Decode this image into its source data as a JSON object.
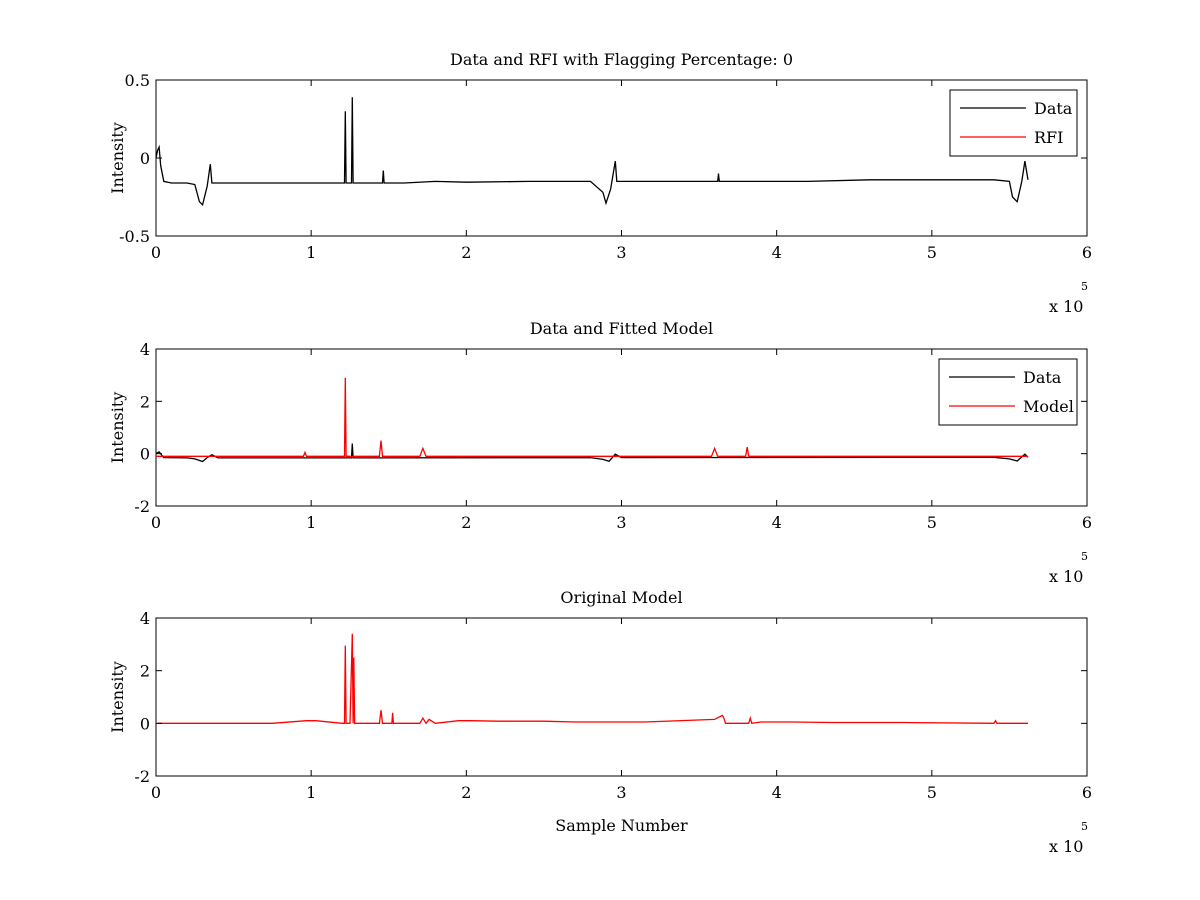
{
  "chart_data": [
    {
      "type": "line",
      "title": "Data and RFI with Flagging Percentage: 0",
      "xlabel": "",
      "ylabel": "Intensity",
      "xlim": [
        0,
        6
      ],
      "ylim": [
        -0.5,
        0.5
      ],
      "xticks": [
        "0",
        "1",
        "2",
        "3",
        "4",
        "5",
        "6"
      ],
      "yticks": [
        "-0.5",
        "0",
        "0.5"
      ],
      "x_multiplier": "x 10",
      "x_exponent": "5",
      "legend": "top-right",
      "series": [
        {
          "name": "Data",
          "color": "#000000",
          "x": [
            0,
            0.01,
            0.02,
            0.03,
            0.05,
            0.1,
            0.2,
            0.25,
            0.28,
            0.3,
            0.33,
            0.35,
            0.36,
            0.4,
            0.6,
            0.8,
            1.0,
            1.2,
            1.215,
            1.22,
            1.225,
            1.25,
            1.26,
            1.265,
            1.27,
            1.3,
            1.46,
            1.465,
            1.47,
            1.6,
            1.8,
            2.0,
            2.4,
            2.8,
            2.88,
            2.9,
            2.93,
            2.96,
            2.97,
            3.0,
            3.2,
            3.62,
            3.625,
            3.63,
            3.8,
            4.2,
            4.6,
            5.0,
            5.4,
            5.5,
            5.52,
            5.55,
            5.58,
            5.6,
            5.62
          ],
          "y": [
            0.0,
            0.05,
            0.07,
            -0.05,
            -0.15,
            -0.16,
            -0.16,
            -0.17,
            -0.28,
            -0.3,
            -0.18,
            -0.04,
            -0.16,
            -0.16,
            -0.16,
            -0.16,
            -0.16,
            -0.16,
            -0.16,
            0.3,
            -0.16,
            -0.16,
            -0.16,
            0.39,
            -0.16,
            -0.16,
            -0.16,
            -0.08,
            -0.16,
            -0.16,
            -0.15,
            -0.155,
            -0.15,
            -0.15,
            -0.22,
            -0.29,
            -0.2,
            -0.02,
            -0.15,
            -0.15,
            -0.15,
            -0.15,
            -0.1,
            -0.15,
            -0.15,
            -0.15,
            -0.14,
            -0.14,
            -0.14,
            -0.15,
            -0.25,
            -0.28,
            -0.15,
            -0.02,
            -0.14
          ]
        },
        {
          "name": "RFI",
          "color": "#ff0000",
          "x": [],
          "y": []
        }
      ]
    },
    {
      "type": "line",
      "title": "Data and Fitted Model",
      "xlabel": "",
      "ylabel": "Intensity",
      "xlim": [
        0,
        6
      ],
      "ylim": [
        -2,
        4
      ],
      "xticks": [
        "0",
        "1",
        "2",
        "3",
        "4",
        "5",
        "6"
      ],
      "yticks": [
        "-2",
        "0",
        "2",
        "4"
      ],
      "x_multiplier": "x 10",
      "x_exponent": "5",
      "legend": "top-right",
      "series": [
        {
          "name": "Data",
          "color": "#000000",
          "x": [
            0,
            0.02,
            0.05,
            0.2,
            0.25,
            0.3,
            0.33,
            0.36,
            0.4,
            1.2,
            1.26,
            1.265,
            1.27,
            1.3,
            2.8,
            2.88,
            2.92,
            2.96,
            3.0,
            5.4,
            5.5,
            5.55,
            5.6,
            5.62
          ],
          "y": [
            0.0,
            0.07,
            -0.15,
            -0.16,
            -0.2,
            -0.3,
            -0.15,
            -0.04,
            -0.16,
            -0.16,
            -0.16,
            0.39,
            -0.16,
            -0.16,
            -0.15,
            -0.22,
            -0.29,
            -0.02,
            -0.15,
            -0.14,
            -0.2,
            -0.28,
            -0.02,
            -0.14
          ]
        },
        {
          "name": "Model",
          "color": "#ff0000",
          "x": [
            0,
            0.4,
            0.95,
            0.96,
            0.97,
            1.2,
            1.215,
            1.22,
            1.225,
            1.25,
            1.44,
            1.45,
            1.46,
            1.5,
            1.7,
            1.72,
            1.74,
            2.0,
            2.5,
            3.0,
            3.58,
            3.6,
            3.62,
            3.8,
            3.81,
            3.82,
            4.2,
            4.6,
            5.0,
            5.4,
            5.62
          ],
          "y": [
            -0.1,
            -0.1,
            -0.1,
            0.05,
            -0.1,
            -0.1,
            -0.1,
            2.9,
            -0.1,
            -0.1,
            -0.1,
            0.5,
            -0.1,
            -0.1,
            -0.1,
            0.2,
            -0.1,
            -0.1,
            -0.1,
            -0.1,
            -0.1,
            0.2,
            -0.1,
            -0.1,
            0.25,
            -0.1,
            -0.1,
            -0.1,
            -0.1,
            -0.1,
            -0.1
          ]
        }
      ]
    },
    {
      "type": "line",
      "title": "Original Model",
      "xlabel": "Sample Number",
      "ylabel": "Intensity",
      "xlim": [
        0,
        6
      ],
      "ylim": [
        -2,
        4
      ],
      "xticks": [
        "0",
        "1",
        "2",
        "3",
        "4",
        "5",
        "6"
      ],
      "yticks": [
        "-2",
        "0",
        "2",
        "4"
      ],
      "x_multiplier": "x 10",
      "x_exponent": "5",
      "series": [
        {
          "color": "#ff0000",
          "x": [
            0.01,
            0.1,
            0.5,
            0.75,
            0.97,
            1.03,
            1.2,
            1.215,
            1.22,
            1.225,
            1.25,
            1.265,
            1.27,
            1.275,
            1.28,
            1.3,
            1.44,
            1.45,
            1.46,
            1.52,
            1.525,
            1.53,
            1.7,
            1.72,
            1.74,
            1.76,
            1.8,
            1.95,
            2.03,
            2.2,
            2.25,
            2.5,
            2.7,
            3.07,
            3.15,
            3.6,
            3.65,
            3.66,
            3.67,
            3.82,
            3.83,
            3.84,
            3.9,
            4.1,
            4.35,
            4.8,
            5.4,
            5.41,
            5.42,
            5.62
          ],
          "y": [
            0,
            0,
            0,
            0,
            0.1,
            0.1,
            0,
            0,
            2.95,
            0,
            0,
            3.4,
            0,
            2.5,
            0,
            0,
            0,
            0.5,
            0,
            0,
            0.4,
            0,
            0,
            0.2,
            0,
            0.15,
            0,
            0.1,
            0.1,
            0.08,
            0.08,
            0.08,
            0.05,
            0.05,
            0.05,
            0.15,
            0.3,
            0.2,
            0,
            0,
            0.2,
            0,
            0.05,
            0.05,
            0.03,
            0.03,
            0,
            0.1,
            0,
            0
          ]
        }
      ]
    }
  ]
}
